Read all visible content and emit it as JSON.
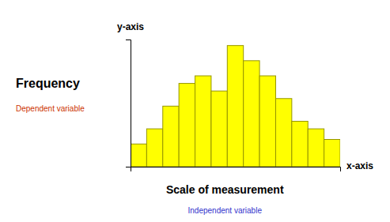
{
  "chart_data": {
    "type": "bar",
    "categories": [
      null,
      null,
      null,
      null,
      null,
      null,
      null,
      null,
      null,
      null,
      null,
      null,
      null
    ],
    "values": [
      1.5,
      2.5,
      4,
      5.5,
      6,
      5,
      8,
      7,
      6,
      4.5,
      3,
      2.5,
      1.8
    ],
    "color": "#FFFF00",
    "ylim": [
      0,
      8.4
    ],
    "tick_labels": false,
    "grid": false,
    "x_label": "x-axis",
    "y_label": "y-axis",
    "annotations": [
      {
        "text": "Frequency"
      },
      {
        "text": "Dependent variable",
        "color": "#CC3300"
      },
      {
        "text": "Scale of measurement"
      },
      {
        "text": "Independent variable",
        "color": "#3333CC"
      }
    ]
  }
}
